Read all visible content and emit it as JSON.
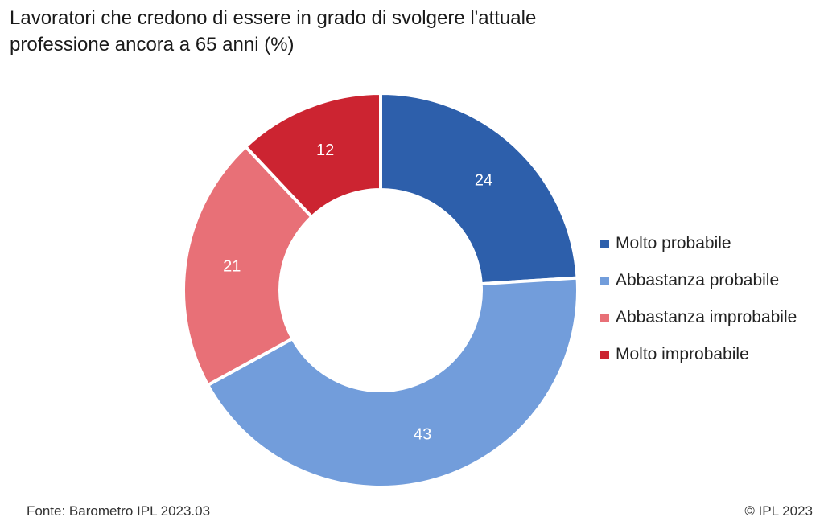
{
  "title_lines": [
    "Lavoratori che credono di essere in grado di svolgere l'attuale",
    "professione ancora a 65 anni (%)"
  ],
  "source": "Fonte: Barometro IPL 2023.03",
  "copyright": "© IPL 2023",
  "chart_data": {
    "type": "pie",
    "subtype": "donut",
    "title": "Lavoratori che credono di essere in grado di svolgere l'attuale professione ancora a 65 anni (%)",
    "unit": "%",
    "legend_position": "right",
    "categories": [
      "Molto probabile",
      "Abbastanza probabile",
      "Abbastanza improbabile",
      "Molto improbabile"
    ],
    "values": [
      24,
      43,
      21,
      12
    ],
    "colors": [
      "#2d5fab",
      "#729ddb",
      "#e87077",
      "#cc2431"
    ],
    "data_labels": [
      "24",
      "43",
      "21",
      "12"
    ]
  }
}
